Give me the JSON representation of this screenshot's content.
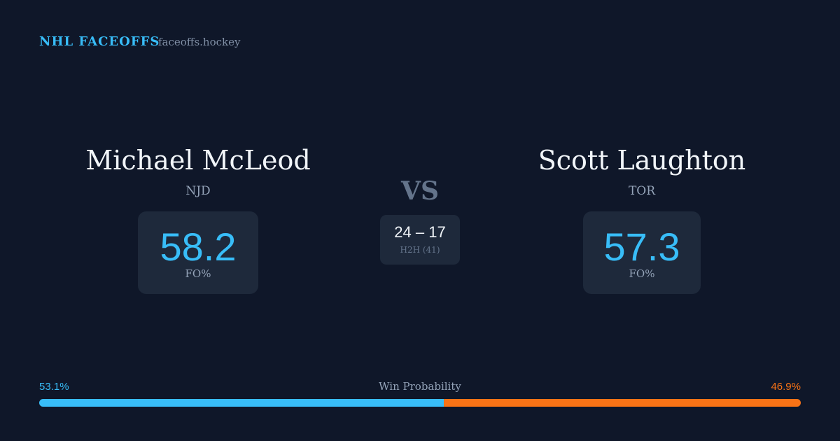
{
  "brand": {
    "title": "NHL FACEOFFS",
    "domain": "faceoffs.hockey"
  },
  "players": [
    {
      "name": "Michael McLeod",
      "team": "NJD",
      "fo_pct": 58.2,
      "fo_label": "FO%"
    },
    {
      "name": "Scott Laughton",
      "team": "TOR",
      "fo_pct": 57.3,
      "fo_label": "FO%"
    }
  ],
  "vs": "VS",
  "h2h": {
    "score": "24 – 17",
    "label": "H2H (41)"
  },
  "win_probability": {
    "label": "Win Probability",
    "home": {
      "value": 53.1,
      "label": "53.1%",
      "color": "#38bdf8"
    },
    "away": {
      "value": 46.9,
      "label": "46.9%",
      "color": "#f97316"
    }
  }
}
